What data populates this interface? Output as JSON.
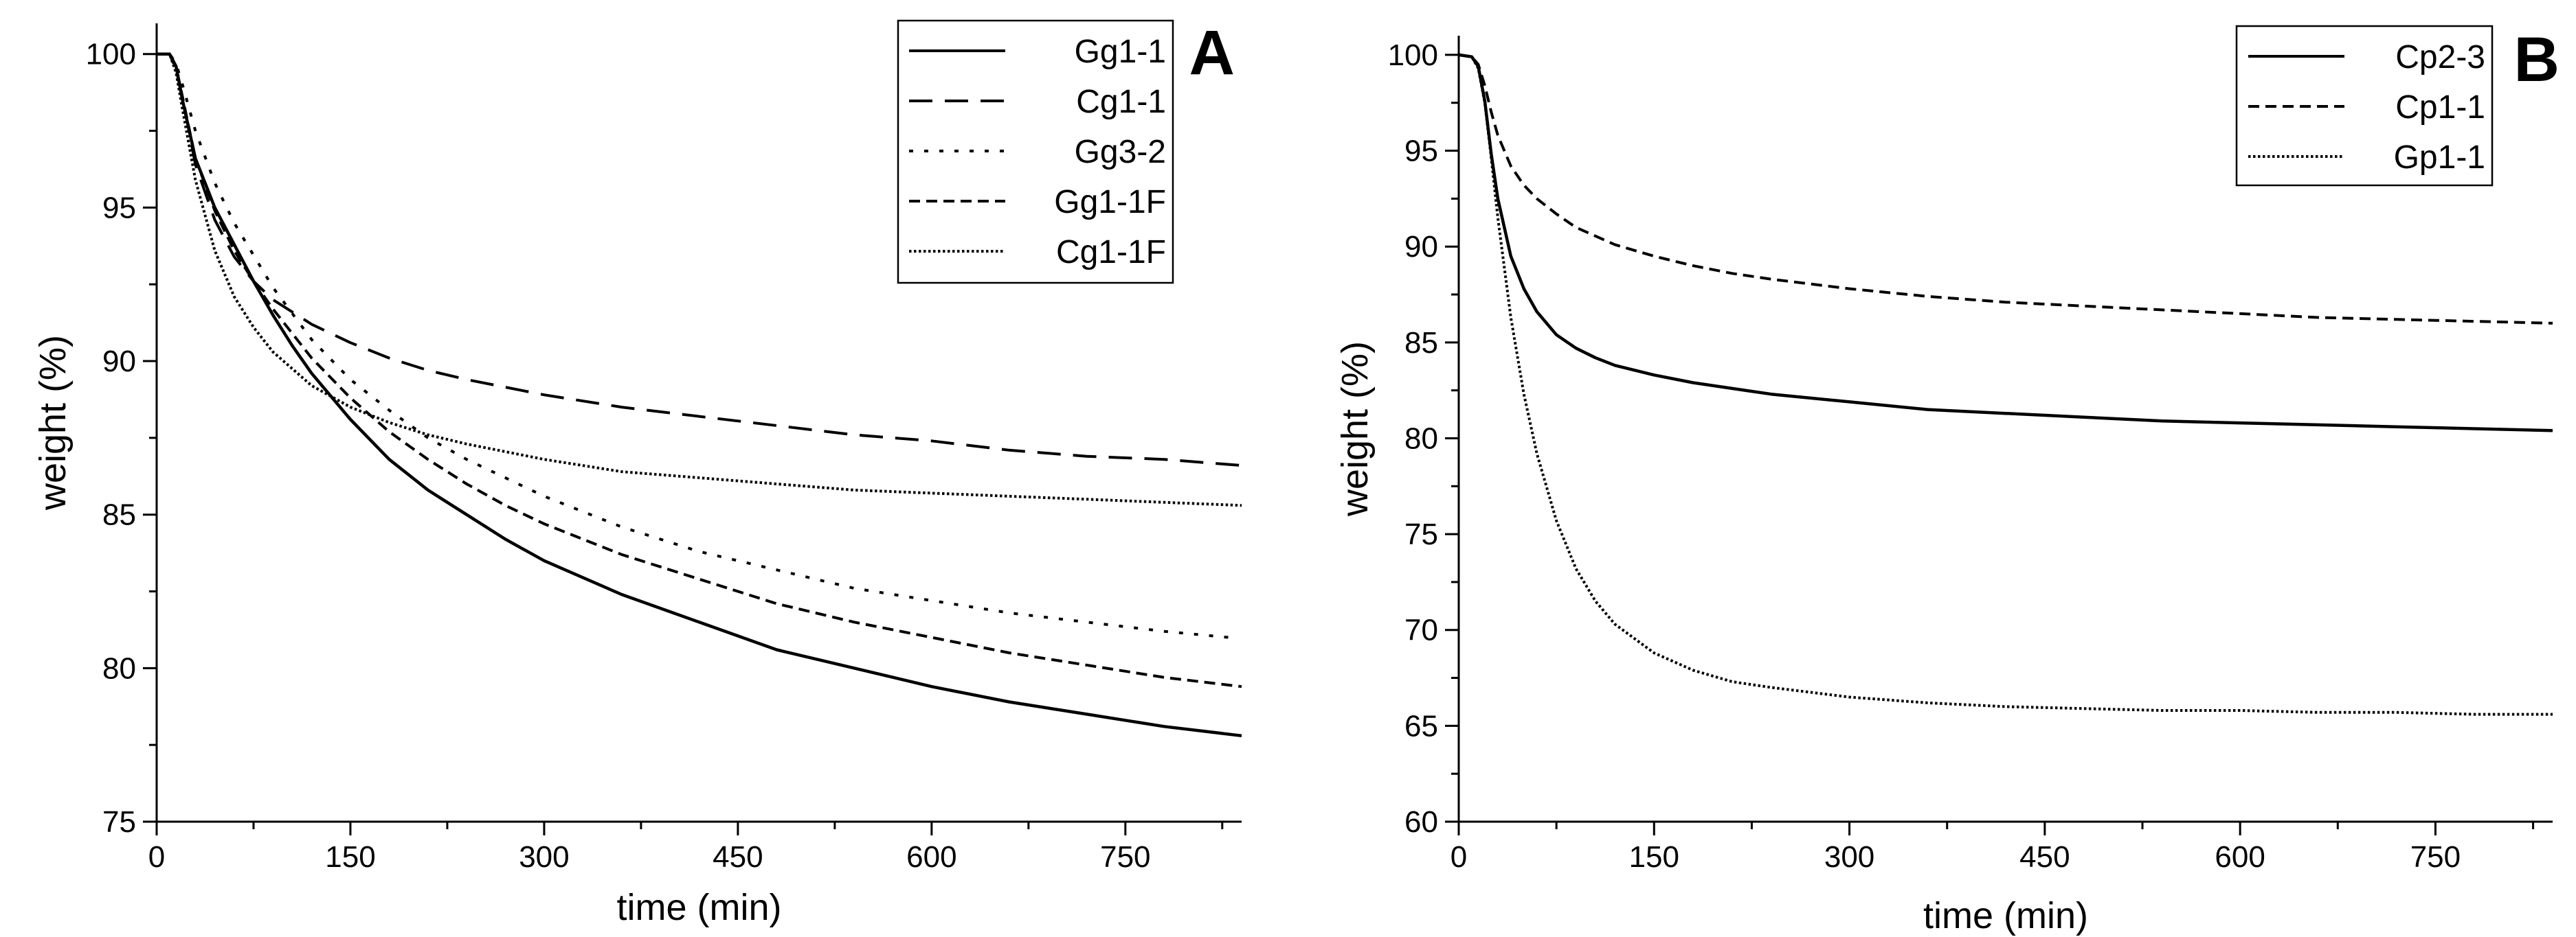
{
  "chart_data": [
    {
      "panel": "A",
      "type": "line",
      "xlabel": "time (min)",
      "ylabel": "weight (%)",
      "xlim": [
        0,
        840
      ],
      "ylim": [
        75,
        101
      ],
      "xticks": [
        0,
        150,
        300,
        450,
        600,
        750
      ],
      "yticks": [
        75,
        80,
        85,
        90,
        95,
        100
      ],
      "legend_position": "top-right",
      "series": [
        {
          "name": "Gg1-1",
          "dash": "solid",
          "x": [
            0,
            10,
            15,
            20,
            30,
            45,
            60,
            75,
            90,
            105,
            120,
            150,
            180,
            210,
            240,
            270,
            300,
            360,
            420,
            480,
            540,
            600,
            660,
            720,
            780,
            840
          ],
          "y": [
            100,
            100,
            99.6,
            98.5,
            96.6,
            95.0,
            93.8,
            92.6,
            91.5,
            90.5,
            89.6,
            88.1,
            86.8,
            85.8,
            85.0,
            84.2,
            83.5,
            82.4,
            81.5,
            80.6,
            80.0,
            79.4,
            78.9,
            78.5,
            78.1,
            77.8
          ]
        },
        {
          "name": "Cg1-1",
          "dash": "long-dash",
          "x": [
            0,
            10,
            15,
            20,
            30,
            45,
            60,
            75,
            90,
            120,
            150,
            180,
            210,
            240,
            300,
            360,
            420,
            480,
            540,
            600,
            660,
            720,
            780,
            840
          ],
          "y": [
            100,
            100,
            99.5,
            98.6,
            96.4,
            94.6,
            93.4,
            92.6,
            92.0,
            91.2,
            90.6,
            90.1,
            89.7,
            89.4,
            88.9,
            88.5,
            88.2,
            87.9,
            87.6,
            87.4,
            87.1,
            86.9,
            86.8,
            86.6
          ]
        },
        {
          "name": "Gg3-2",
          "dash": "dot",
          "x": [
            0,
            10,
            15,
            20,
            30,
            45,
            60,
            90,
            120,
            150,
            180,
            210,
            240,
            300,
            360,
            420,
            480,
            540,
            600,
            660,
            720,
            780,
            830
          ],
          "y": [
            100,
            100,
            99.7,
            99.0,
            97.5,
            95.8,
            94.5,
            92.4,
            90.7,
            89.4,
            88.4,
            87.5,
            86.8,
            85.6,
            84.6,
            83.8,
            83.2,
            82.6,
            82.2,
            81.8,
            81.5,
            81.2,
            81.0
          ]
        },
        {
          "name": "Gg1-1F",
          "dash": "short-dash",
          "x": [
            0,
            10,
            15,
            20,
            30,
            45,
            60,
            75,
            90,
            120,
            150,
            180,
            210,
            240,
            270,
            300,
            360,
            420,
            480,
            540,
            600,
            660,
            720,
            780,
            840
          ],
          "y": [
            100,
            100,
            99.6,
            98.6,
            96.6,
            94.9,
            93.6,
            92.6,
            91.7,
            90.1,
            88.8,
            87.7,
            86.8,
            86.0,
            85.3,
            84.7,
            83.7,
            82.9,
            82.1,
            81.5,
            81.0,
            80.5,
            80.1,
            79.7,
            79.4
          ]
        },
        {
          "name": "Cg1-1F",
          "dash": "dense-dot",
          "x": [
            0,
            10,
            15,
            20,
            30,
            45,
            60,
            75,
            90,
            120,
            150,
            180,
            210,
            240,
            300,
            360,
            420,
            480,
            540,
            600,
            660,
            720,
            780,
            840
          ],
          "y": [
            100,
            100,
            99.4,
            98.2,
            95.9,
            93.6,
            92.1,
            91.1,
            90.3,
            89.2,
            88.5,
            88.0,
            87.6,
            87.3,
            86.8,
            86.4,
            86.2,
            86.0,
            85.8,
            85.7,
            85.6,
            85.5,
            85.4,
            85.3
          ]
        }
      ]
    },
    {
      "panel": "B",
      "type": "line",
      "xlabel": "time (min)",
      "ylabel": "weight (%)",
      "xlim": [
        0,
        840
      ],
      "ylim": [
        60,
        101
      ],
      "xticks": [
        0,
        150,
        300,
        450,
        600,
        750
      ],
      "yticks": [
        60,
        65,
        70,
        75,
        80,
        85,
        90,
        95,
        100
      ],
      "legend_position": "top-right",
      "series": [
        {
          "name": "Cp2-3",
          "dash": "solid",
          "x": [
            0,
            10,
            15,
            20,
            25,
            30,
            40,
            50,
            60,
            75,
            90,
            105,
            120,
            150,
            180,
            210,
            240,
            300,
            360,
            420,
            480,
            540,
            600,
            660,
            720,
            780,
            840
          ],
          "y": [
            100,
            99.9,
            99.4,
            97.6,
            94.8,
            92.5,
            89.5,
            87.8,
            86.6,
            85.4,
            84.7,
            84.2,
            83.8,
            83.3,
            82.9,
            82.6,
            82.3,
            81.9,
            81.5,
            81.3,
            81.1,
            80.9,
            80.8,
            80.7,
            80.6,
            80.5,
            80.4
          ]
        },
        {
          "name": "Cp1-1",
          "dash": "short-dash",
          "x": [
            0,
            10,
            15,
            20,
            25,
            30,
            40,
            50,
            60,
            75,
            90,
            120,
            150,
            180,
            210,
            240,
            300,
            360,
            420,
            480,
            540,
            600,
            660,
            720,
            780,
            840
          ],
          "y": [
            100,
            99.9,
            99.5,
            98.4,
            97.0,
            95.8,
            94.2,
            93.2,
            92.5,
            91.7,
            91.0,
            90.1,
            89.5,
            89.0,
            88.6,
            88.3,
            87.8,
            87.4,
            87.1,
            86.9,
            86.7,
            86.5,
            86.3,
            86.2,
            86.1,
            86.0
          ]
        },
        {
          "name": "Gp1-1",
          "dash": "dense-dot",
          "x": [
            0,
            10,
            15,
            20,
            25,
            30,
            40,
            50,
            60,
            75,
            90,
            105,
            120,
            150,
            180,
            210,
            240,
            300,
            360,
            420,
            480,
            540,
            600,
            660,
            720,
            780,
            840
          ],
          "y": [
            100,
            99.9,
            99.3,
            97.5,
            94.6,
            91.5,
            86.3,
            82.3,
            79.2,
            75.7,
            73.2,
            71.5,
            70.3,
            68.8,
            67.9,
            67.3,
            67.0,
            66.5,
            66.2,
            66.0,
            65.9,
            65.8,
            65.8,
            65.7,
            65.7,
            65.6,
            65.6
          ]
        }
      ]
    }
  ]
}
